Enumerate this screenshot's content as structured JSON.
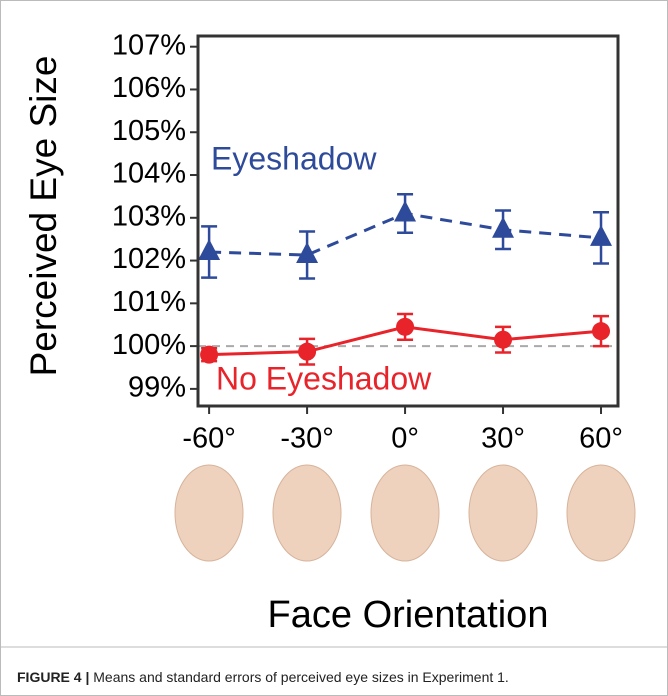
{
  "chart_data": {
    "type": "line",
    "y_label": "Perceived Eye Size",
    "x_label": "Face Orientation",
    "x": [
      -60,
      -30,
      0,
      30,
      60
    ],
    "xlim": [
      -63.4,
      65.2
    ],
    "xticks": [
      {
        "value": -60,
        "label": "-60°"
      },
      {
        "value": -30,
        "label": "-30°"
      },
      {
        "value": 0,
        "label": "0°"
      },
      {
        "value": 30,
        "label": "30°"
      },
      {
        "value": 60,
        "label": "60°"
      }
    ],
    "ylim": [
      98.6,
      107.25
    ],
    "yticks": [
      {
        "value": 99,
        "label": "99%"
      },
      {
        "value": 100,
        "label": "100%"
      },
      {
        "value": 101,
        "label": "101%"
      },
      {
        "value": 102,
        "label": "102%"
      },
      {
        "value": 103,
        "label": "103%"
      },
      {
        "value": 104,
        "label": "104%"
      },
      {
        "value": 105,
        "label": "105%"
      },
      {
        "value": 106,
        "label": "106%"
      },
      {
        "value": 107,
        "label": "107%"
      }
    ],
    "reference_line": 100,
    "series": [
      {
        "name": "Eyeshadow",
        "color": "#2e4a9a",
        "marker": "triangle",
        "line_style": "dashed",
        "values": [
          102.2,
          102.13,
          103.1,
          102.72,
          102.53
        ],
        "errors": [
          0.6,
          0.55,
          0.45,
          0.45,
          0.6
        ]
      },
      {
        "name": "No Eyeshadow",
        "color": "#e8232a",
        "marker": "circle",
        "line_style": "solid",
        "values": [
          99.8,
          99.87,
          100.45,
          100.15,
          100.35
        ],
        "errors": [
          0.15,
          0.3,
          0.3,
          0.3,
          0.35
        ]
      }
    ]
  },
  "caption": {
    "label": "FIGURE 4 |",
    "text": "Means and standard errors of perceived eye sizes in Experiment 1."
  }
}
